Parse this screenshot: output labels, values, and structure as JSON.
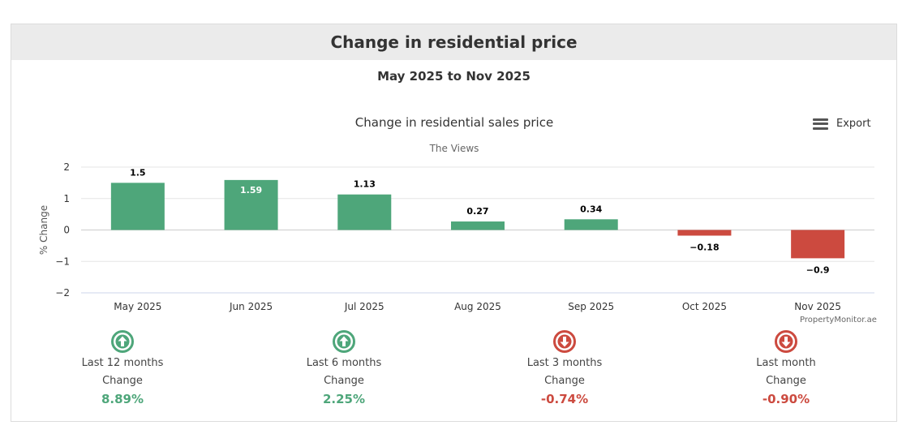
{
  "page": {
    "title": "Change in residential price",
    "date_range": "May 2025 to Nov 2025",
    "export_label": "Export",
    "credit": "PropertyMonitor.ae"
  },
  "colors": {
    "positive": "#4ea67a",
    "negative": "#cc4a3f",
    "header_bg": "#ebebeb"
  },
  "chart_data": {
    "type": "bar",
    "title": "Change in residential sales price",
    "subtitle": "The Views",
    "ylabel": "% Change",
    "xlabel": "",
    "ylim": [
      -2,
      2
    ],
    "yticks": [
      2,
      1,
      0,
      -1,
      -2
    ],
    "ytick_labels": [
      "2",
      "1",
      "0",
      "−1",
      "−2"
    ],
    "grid": true,
    "categories": [
      "May 2025",
      "Jun 2025",
      "Jul 2025",
      "Aug 2025",
      "Sep 2025",
      "Oct 2025",
      "Nov 2025"
    ],
    "values": [
      1.5,
      1.59,
      1.13,
      0.27,
      0.34,
      -0.18,
      -0.9
    ],
    "value_labels": [
      "1.5",
      "1.59",
      "1.13",
      "0.27",
      "0.34",
      "−0.18",
      "−0.9"
    ]
  },
  "stats": [
    {
      "period": "Last 12 months",
      "change_label": "Change",
      "value": "8.89%",
      "direction": "up",
      "icon": "arrow-up-circle-icon"
    },
    {
      "period": "Last 6 months",
      "change_label": "Change",
      "value": "2.25%",
      "direction": "up",
      "icon": "arrow-up-circle-icon"
    },
    {
      "period": "Last 3 months",
      "change_label": "Change",
      "value": "-0.74%",
      "direction": "down",
      "icon": "arrow-down-circle-icon"
    },
    {
      "period": "Last month",
      "change_label": "Change",
      "value": "-0.90%",
      "direction": "down",
      "icon": "arrow-down-circle-icon"
    }
  ]
}
